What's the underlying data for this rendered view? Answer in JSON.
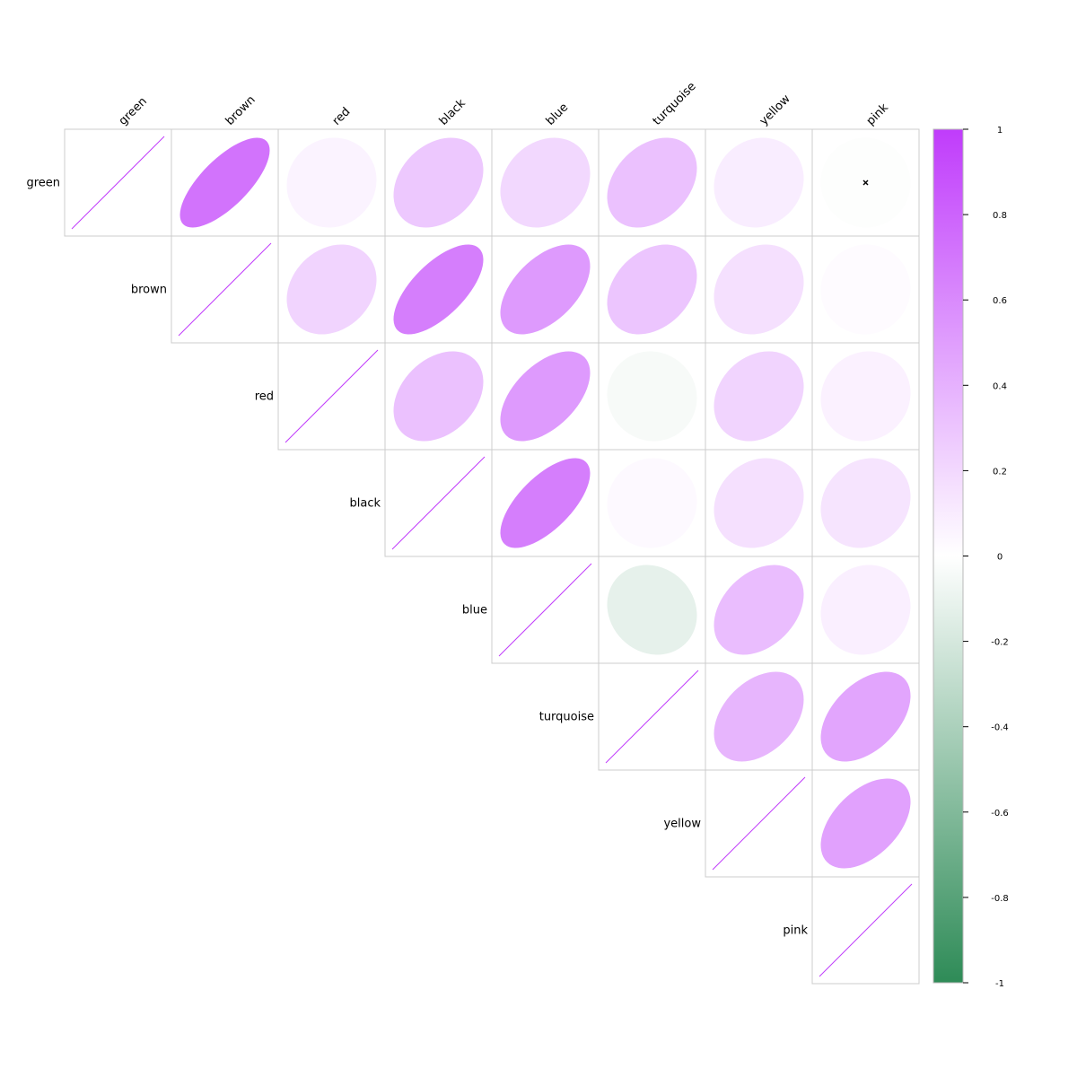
{
  "chart_data": {
    "type": "heatmap",
    "variables": [
      "green",
      "brown",
      "red",
      "black",
      "blue",
      "turquoise",
      "yellow",
      "pink"
    ],
    "matrix": [
      [
        1.0,
        0.72,
        0.06,
        0.28,
        0.2,
        0.32,
        0.09,
        -0.01
      ],
      [
        0.72,
        1.0,
        0.22,
        0.66,
        0.52,
        0.3,
        0.16,
        0.02
      ],
      [
        0.06,
        0.22,
        1.0,
        0.32,
        0.52,
        -0.04,
        0.22,
        0.07
      ],
      [
        0.28,
        0.66,
        0.32,
        1.0,
        0.66,
        0.03,
        0.16,
        0.14
      ],
      [
        0.2,
        0.52,
        0.52,
        0.66,
        1.0,
        -0.12,
        0.34,
        0.08
      ],
      [
        0.32,
        0.3,
        -0.04,
        0.03,
        -0.12,
        1.0,
        0.38,
        0.46
      ],
      [
        0.09,
        0.16,
        0.22,
        0.16,
        0.34,
        0.38,
        1.0,
        0.48
      ],
      [
        -0.01,
        0.02,
        0.07,
        0.14,
        0.08,
        0.46,
        0.48,
        1.0
      ]
    ],
    "triangle": "upper",
    "insignificant_marks": [
      [
        0,
        7
      ]
    ],
    "colorbar": {
      "ticks": [
        "1",
        "0.8",
        "0.6",
        "0.4",
        "0.2",
        "0",
        "-0.2",
        "-0.4",
        "-0.6",
        "-0.8",
        "-1"
      ],
      "range": [
        -1,
        1
      ],
      "high_color": "#c03cfb",
      "mid_color": "#ffffff",
      "low_color": "#2e8b57"
    },
    "legend_placement": "right"
  }
}
